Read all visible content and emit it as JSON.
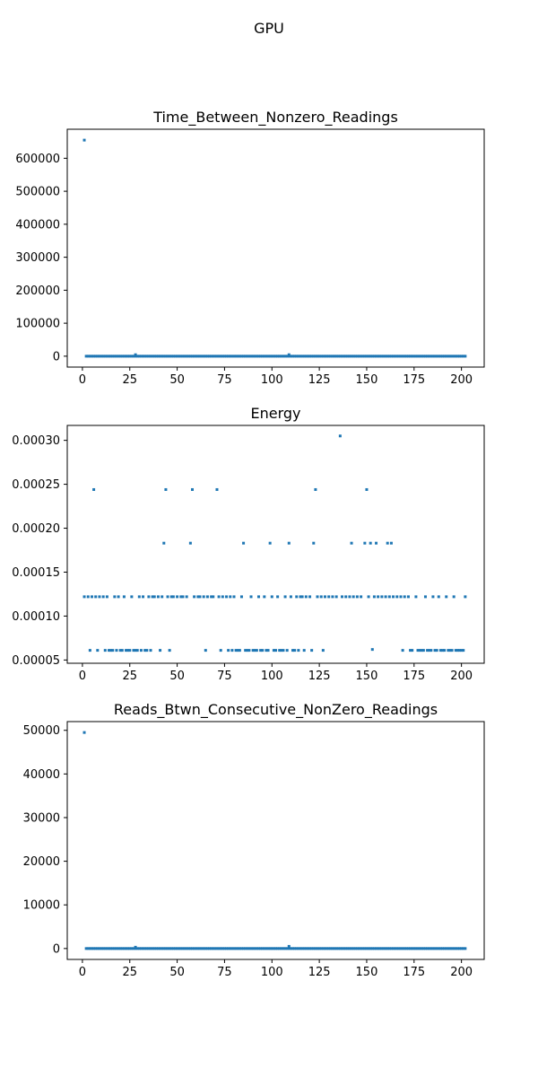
{
  "figure_title": "GPU",
  "chart_data": [
    {
      "type": "scatter",
      "title": "Time_Between_Nonzero_Readings",
      "xlabel": "",
      "ylabel": "",
      "xlim": [
        -8,
        212
      ],
      "ylim": [
        -33000,
        688000
      ],
      "xticks": [
        0,
        25,
        50,
        75,
        100,
        125,
        150,
        175,
        200
      ],
      "yticks": [
        0,
        100000,
        200000,
        300000,
        400000,
        500000,
        600000
      ],
      "grid": false,
      "series": [
        {
          "points": [
            [
              1,
              655000
            ],
            [
              28,
              4500
            ],
            [
              109,
              4500
            ]
          ],
          "baseline": {
            "x_start": 2,
            "x_end": 202,
            "y": 0
          }
        }
      ]
    },
    {
      "type": "scatter",
      "title": "Energy",
      "xlabel": "",
      "ylabel": "",
      "xlim": [
        -8,
        212
      ],
      "ylim": [
        4.63e-05,
        0.000317
      ],
      "xticks": [
        0,
        25,
        50,
        75,
        100,
        125,
        150,
        175,
        200
      ],
      "yticks": [
        5e-05,
        0.0001,
        0.00015,
        0.0002,
        0.00025,
        0.0003
      ],
      "grid": false,
      "series": [
        {
          "points": [
            [
              136,
              0.000305
            ],
            [
              6,
              0.000244
            ],
            [
              44,
              0.000244
            ],
            [
              58,
              0.000244
            ],
            [
              71,
              0.000244
            ],
            [
              123,
              0.000244
            ],
            [
              150,
              0.000244
            ],
            [
              43,
              0.000183
            ],
            [
              57,
              0.000183
            ],
            [
              85,
              0.000183
            ],
            [
              99,
              0.000183
            ],
            [
              109,
              0.000183
            ],
            [
              122,
              0.000183
            ],
            [
              142,
              0.000183
            ],
            [
              149,
              0.000183
            ],
            [
              152,
              0.000183
            ],
            [
              155,
              0.000183
            ],
            [
              161,
              0.000183
            ],
            [
              163,
              0.000183
            ],
            [
              1,
              0.000122
            ],
            [
              3,
              0.000122
            ],
            [
              5,
              0.000122
            ],
            [
              7,
              0.000122
            ],
            [
              9,
              0.000122
            ],
            [
              11,
              0.000122
            ],
            [
              13,
              0.000122
            ],
            [
              17,
              0.000122
            ],
            [
              19,
              0.000122
            ],
            [
              22,
              0.000122
            ],
            [
              26,
              0.000122
            ],
            [
              30,
              0.000122
            ],
            [
              32,
              0.000122
            ],
            [
              35,
              0.000122
            ],
            [
              37,
              0.000122
            ],
            [
              38,
              0.000122
            ],
            [
              40,
              0.000122
            ],
            [
              42,
              0.000122
            ],
            [
              45,
              0.000122
            ],
            [
              47,
              0.000122
            ],
            [
              48,
              0.000122
            ],
            [
              50,
              0.000122
            ],
            [
              52,
              0.000122
            ],
            [
              53,
              0.000122
            ],
            [
              55,
              0.000122
            ],
            [
              59,
              0.000122
            ],
            [
              61,
              0.000122
            ],
            [
              62,
              0.000122
            ],
            [
              64,
              0.000122
            ],
            [
              66,
              0.000122
            ],
            [
              68,
              0.000122
            ],
            [
              69,
              0.000122
            ],
            [
              72,
              0.000122
            ],
            [
              74,
              0.000122
            ],
            [
              76,
              0.000122
            ],
            [
              78,
              0.000122
            ],
            [
              80,
              0.000122
            ],
            [
              84,
              0.000122
            ],
            [
              89,
              0.000122
            ],
            [
              93,
              0.000122
            ],
            [
              96,
              0.000122
            ],
            [
              100,
              0.000122
            ],
            [
              103,
              0.000122
            ],
            [
              107,
              0.000122
            ],
            [
              110,
              0.000122
            ],
            [
              113,
              0.000122
            ],
            [
              115,
              0.000122
            ],
            [
              116,
              0.000122
            ],
            [
              118,
              0.000122
            ],
            [
              120,
              0.000122
            ],
            [
              124,
              0.000122
            ],
            [
              126,
              0.000122
            ],
            [
              128,
              0.000122
            ],
            [
              130,
              0.000122
            ],
            [
              132,
              0.000122
            ],
            [
              134,
              0.000122
            ],
            [
              137,
              0.000122
            ],
            [
              139,
              0.000122
            ],
            [
              141,
              0.000122
            ],
            [
              143,
              0.000122
            ],
            [
              145,
              0.000122
            ],
            [
              147,
              0.000122
            ],
            [
              151,
              0.000122
            ],
            [
              154,
              0.000122
            ],
            [
              156,
              0.000122
            ],
            [
              158,
              0.000122
            ],
            [
              160,
              0.000122
            ],
            [
              162,
              0.000122
            ],
            [
              164,
              0.000122
            ],
            [
              166,
              0.000122
            ],
            [
              168,
              0.000122
            ],
            [
              170,
              0.000122
            ],
            [
              172,
              0.000122
            ],
            [
              176,
              0.000122
            ],
            [
              181,
              0.000122
            ],
            [
              185,
              0.000122
            ],
            [
              188,
              0.000122
            ],
            [
              192,
              0.000122
            ],
            [
              196,
              0.000122
            ],
            [
              202,
              0.000122
            ],
            [
              4,
              6.1e-05
            ],
            [
              8,
              6.1e-05
            ],
            [
              12,
              6.1e-05
            ],
            [
              14,
              6.1e-05
            ],
            [
              15,
              6.1e-05
            ],
            [
              16,
              6.1e-05
            ],
            [
              18,
              6.1e-05
            ],
            [
              20,
              6.1e-05
            ],
            [
              21,
              6.1e-05
            ],
            [
              23,
              6.1e-05
            ],
            [
              24,
              6.1e-05
            ],
            [
              25,
              6.1e-05
            ],
            [
              27,
              6.1e-05
            ],
            [
              28,
              6.1e-05
            ],
            [
              29,
              6.1e-05
            ],
            [
              31,
              6.1e-05
            ],
            [
              33,
              6.1e-05
            ],
            [
              34,
              6.1e-05
            ],
            [
              36,
              6.1e-05
            ],
            [
              41,
              6.1e-05
            ],
            [
              46,
              6.1e-05
            ],
            [
              65,
              6.1e-05
            ],
            [
              73,
              6.1e-05
            ],
            [
              77,
              6.1e-05
            ],
            [
              79,
              6.1e-05
            ],
            [
              81,
              6.1e-05
            ],
            [
              82,
              6.1e-05
            ],
            [
              83,
              6.1e-05
            ],
            [
              86,
              6.1e-05
            ],
            [
              87,
              6.1e-05
            ],
            [
              88,
              6.1e-05
            ],
            [
              90,
              6.1e-05
            ],
            [
              91,
              6.1e-05
            ],
            [
              92,
              6.1e-05
            ],
            [
              94,
              6.1e-05
            ],
            [
              95,
              6.1e-05
            ],
            [
              97,
              6.1e-05
            ],
            [
              98,
              6.1e-05
            ],
            [
              101,
              6.1e-05
            ],
            [
              102,
              6.1e-05
            ],
            [
              104,
              6.1e-05
            ],
            [
              105,
              6.1e-05
            ],
            [
              106,
              6.1e-05
            ],
            [
              108,
              6.1e-05
            ],
            [
              111,
              6.1e-05
            ],
            [
              112,
              6.1e-05
            ],
            [
              114,
              6.1e-05
            ],
            [
              117,
              6.1e-05
            ],
            [
              121,
              6.1e-05
            ],
            [
              127,
              6.1e-05
            ],
            [
              153,
              6.2e-05
            ],
            [
              169,
              6.1e-05
            ],
            [
              173,
              6.1e-05
            ],
            [
              174,
              6.1e-05
            ],
            [
              177,
              6.1e-05
            ],
            [
              178,
              6.1e-05
            ],
            [
              179,
              6.1e-05
            ],
            [
              180,
              6.1e-05
            ],
            [
              182,
              6.1e-05
            ],
            [
              183,
              6.1e-05
            ],
            [
              184,
              6.1e-05
            ],
            [
              186,
              6.1e-05
            ],
            [
              187,
              6.1e-05
            ],
            [
              189,
              6.1e-05
            ],
            [
              190,
              6.1e-05
            ],
            [
              191,
              6.1e-05
            ],
            [
              193,
              6.1e-05
            ],
            [
              194,
              6.1e-05
            ],
            [
              195,
              6.1e-05
            ],
            [
              197,
              6.1e-05
            ],
            [
              198,
              6.1e-05
            ],
            [
              199,
              6.1e-05
            ],
            [
              200,
              6.1e-05
            ],
            [
              201,
              6.1e-05
            ]
          ]
        }
      ]
    },
    {
      "type": "scatter",
      "title": "Reads_Btwn_Consecutive_NonZero_Readings",
      "xlabel": "",
      "ylabel": "",
      "xlim": [
        -8,
        212
      ],
      "ylim": [
        -2500,
        52000
      ],
      "xticks": [
        0,
        25,
        50,
        75,
        100,
        125,
        150,
        175,
        200
      ],
      "yticks": [
        0,
        10000,
        20000,
        30000,
        40000,
        50000
      ],
      "grid": false,
      "series": [
        {
          "points": [
            [
              1,
              49500
            ],
            [
              28,
              300
            ],
            [
              109,
              500
            ]
          ],
          "baseline": {
            "x_start": 2,
            "x_end": 202,
            "y": 0
          }
        }
      ]
    }
  ]
}
